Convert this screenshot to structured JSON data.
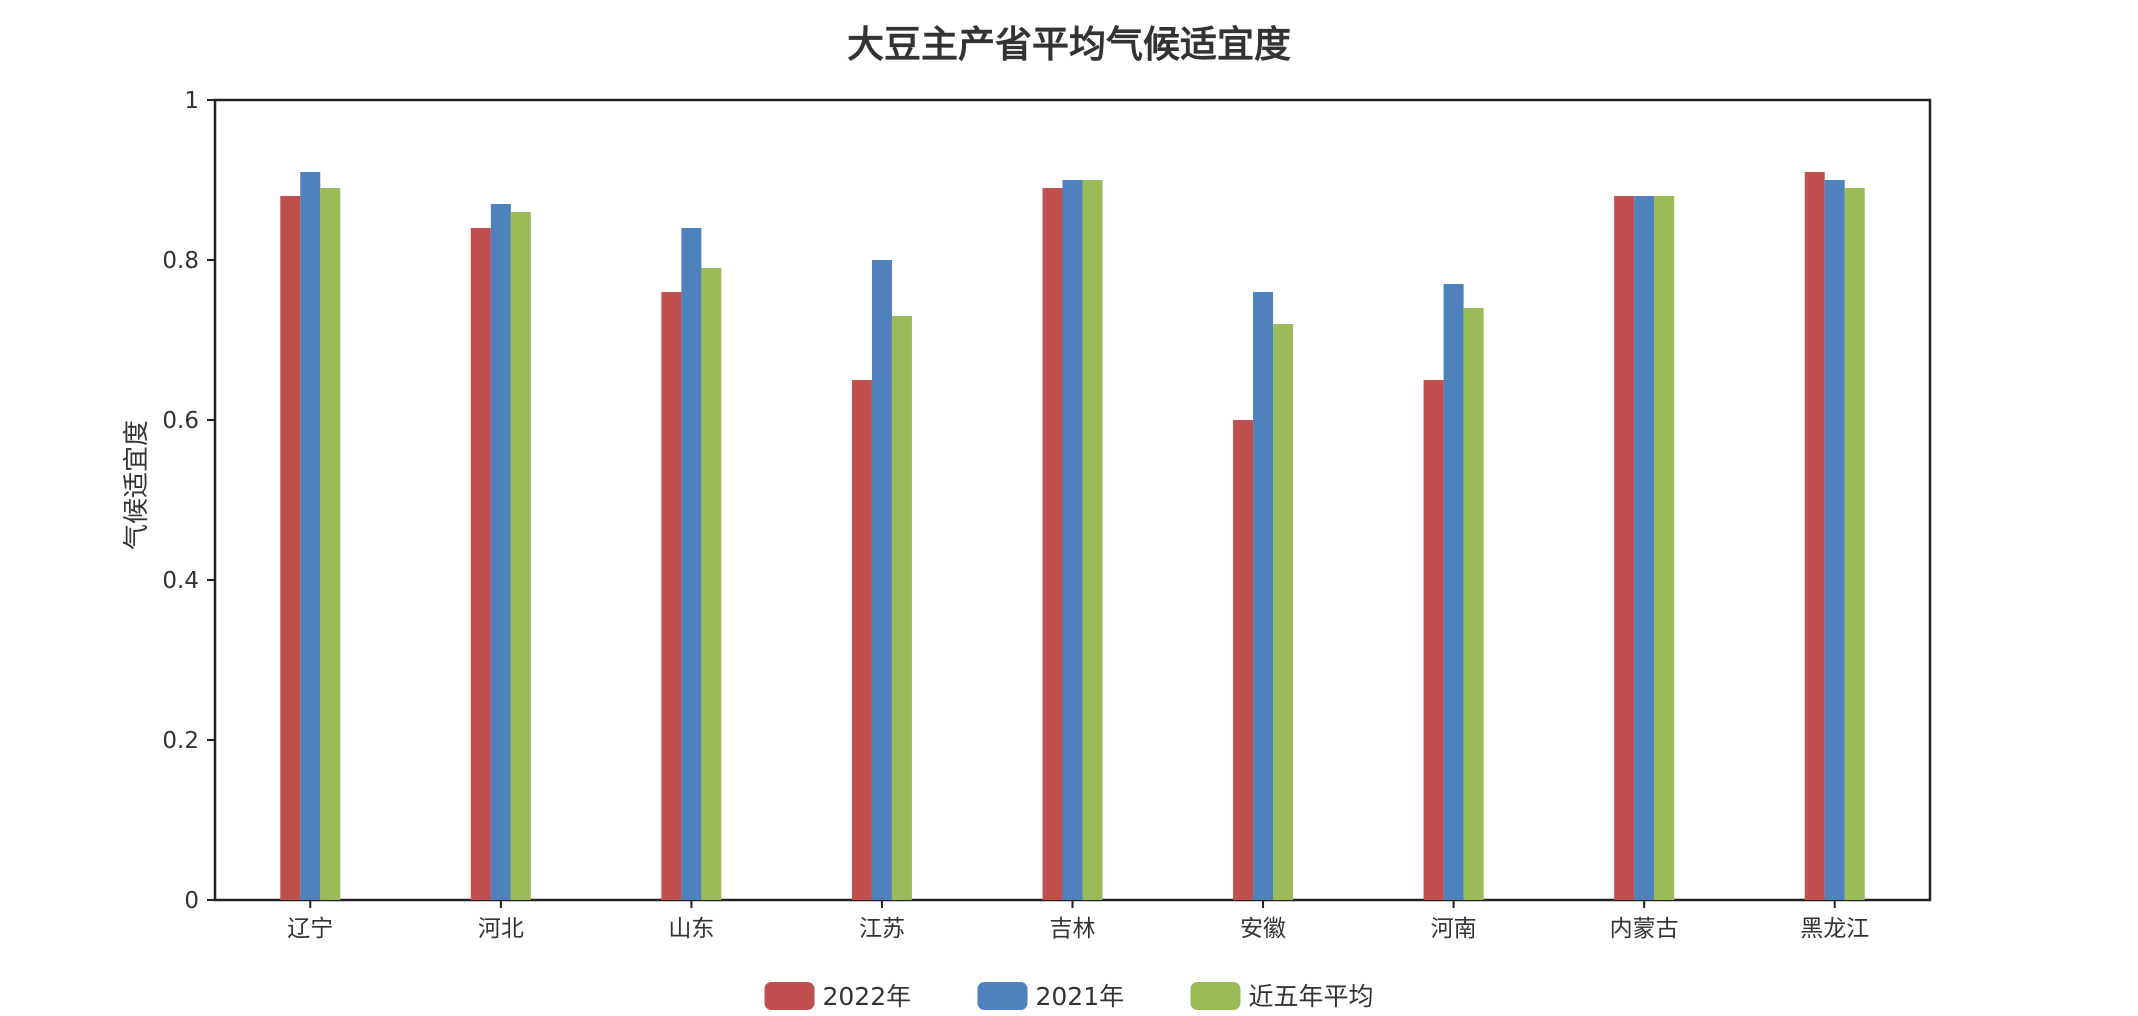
{
  "chart_data": {
    "type": "bar",
    "title": "大豆主产省平均气候适宜度",
    "xlabel": "",
    "ylabel": "气候适宜度",
    "ylim": [
      0,
      1
    ],
    "yticks": [
      "0",
      "0.2",
      "0.4",
      "0.6",
      "0.8",
      "1"
    ],
    "categories": [
      "辽宁",
      "河北",
      "山东",
      "江苏",
      "吉林",
      "安徽",
      "河南",
      "内蒙古",
      "黑龙江"
    ],
    "series": [
      {
        "name": "2022年",
        "color": "#c0504d",
        "values": [
          0.88,
          0.84,
          0.76,
          0.65,
          0.89,
          0.6,
          0.65,
          0.88,
          0.91
        ]
      },
      {
        "name": "2021年",
        "color": "#4f81bd",
        "values": [
          0.91,
          0.87,
          0.84,
          0.8,
          0.9,
          0.76,
          0.77,
          0.88,
          0.9
        ]
      },
      {
        "name": "近五年平均",
        "color": "#9bbb59",
        "values": [
          0.89,
          0.86,
          0.79,
          0.73,
          0.9,
          0.72,
          0.74,
          0.88,
          0.89
        ]
      }
    ],
    "grid": false,
    "legend_position": "bottom-center"
  }
}
